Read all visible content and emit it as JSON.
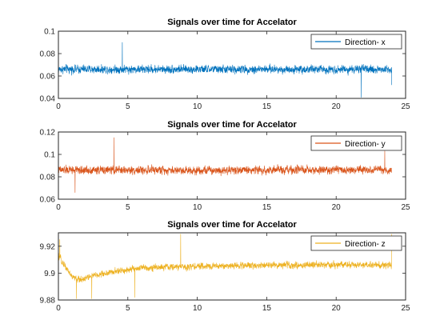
{
  "chart_data": [
    {
      "type": "line",
      "title": "Signals over time for Accelator",
      "xlabel": "",
      "ylabel": "",
      "xlim": [
        0,
        25
      ],
      "ylim": [
        0.04,
        0.1
      ],
      "xticks": [
        0,
        5,
        10,
        15,
        20,
        25
      ],
      "yticks": [
        0.04,
        0.06,
        0.08,
        0.1
      ],
      "ytick_labels": [
        "0.04",
        "0.06",
        "0.08",
        "0.1"
      ],
      "grid": false,
      "legend": "top-right",
      "series": [
        {
          "name": "Direction- x",
          "color": "#0072BD",
          "x_range": [
            0,
            24
          ],
          "mean": 0.066,
          "noise_amplitude": 0.006,
          "envelope": [
            [
              0,
              0.089
            ],
            [
              4.6,
              0.09
            ],
            [
              21.8,
              0.041
            ],
            [
              24,
              0.052
            ]
          ]
        }
      ]
    },
    {
      "type": "line",
      "title": "Signals over time for Accelator",
      "xlabel": "",
      "ylabel": "",
      "xlim": [
        0,
        25
      ],
      "ylim": [
        0.06,
        0.12
      ],
      "xticks": [
        0,
        5,
        10,
        15,
        20,
        25
      ],
      "yticks": [
        0.06,
        0.08,
        0.1,
        0.12
      ],
      "ytick_labels": [
        "0.06",
        "0.08",
        "0.1",
        "0.12"
      ],
      "grid": false,
      "legend": "top-right",
      "series": [
        {
          "name": "Direction- y",
          "color": "#D95319",
          "x_range": [
            0,
            24
          ],
          "mean": 0.086,
          "noise_amplitude": 0.006,
          "envelope": [
            [
              4.0,
              0.115
            ],
            [
              1.2,
              0.066
            ],
            [
              23.5,
              0.103
            ]
          ]
        }
      ]
    },
    {
      "type": "line",
      "title": "Signals over time for Accelator",
      "xlabel": "",
      "ylabel": "",
      "xlim": [
        0,
        25
      ],
      "ylim": [
        9.88,
        9.93
      ],
      "xticks": [
        0,
        5,
        10,
        15,
        20,
        25
      ],
      "yticks": [
        9.88,
        9.9,
        9.92
      ],
      "ytick_labels": [
        "9.88",
        "9.9",
        "9.92"
      ],
      "grid": false,
      "legend": "top-right",
      "series": [
        {
          "name": "Direction- z",
          "color": "#EDB120",
          "x_range": [
            0,
            24
          ],
          "profile": [
            [
              0,
              9.913
            ],
            [
              0.5,
              9.905
            ],
            [
              1,
              9.897
            ],
            [
              1.5,
              9.895
            ],
            [
              2.5,
              9.898
            ],
            [
              4,
              9.901
            ],
            [
              6,
              9.904
            ],
            [
              10,
              9.905
            ],
            [
              15,
              9.906
            ],
            [
              20,
              9.906
            ],
            [
              24,
              9.906
            ]
          ],
          "noise_amplitude": 0.004,
          "envelope": [
            [
              0.1,
              9.925
            ],
            [
              8.8,
              9.929
            ],
            [
              24,
              9.929
            ],
            [
              1.3,
              9.881
            ],
            [
              2.4,
              9.881
            ],
            [
              5.5,
              9.882
            ]
          ]
        }
      ]
    }
  ]
}
